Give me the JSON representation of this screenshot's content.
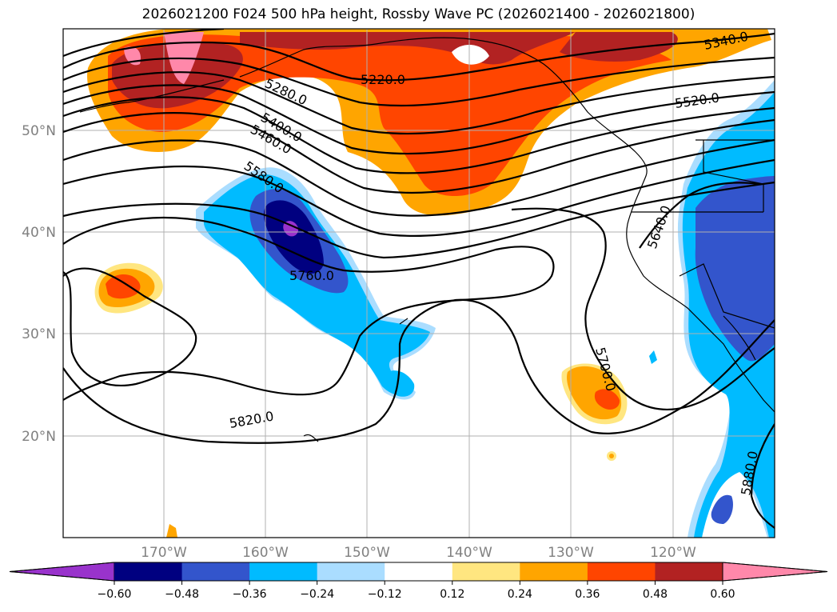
{
  "title": "2026021200 F024 500 hPa height, Rossby Wave PC (2026021400 - 2026021800)",
  "lat_labels": [
    "50°N",
    "40°N",
    "30°N",
    "20°N"
  ],
  "lon_labels": [
    "170°W",
    "160°W",
    "150°W",
    "140°W",
    "130°W",
    "120°W"
  ],
  "contour_labels": [
    "5340.0",
    "5220.0",
    "5280.0",
    "5400.0",
    "5460.0",
    "5520.0",
    "5580.0",
    "5640.0",
    "5760.0",
    "5700.0",
    "5820.0",
    "5880.0"
  ],
  "colorbar": {
    "ticks": [
      "−0.60",
      "−0.48",
      "−0.36",
      "−0.24",
      "−0.12",
      "0.12",
      "0.24",
      "0.36",
      "0.48",
      "0.60"
    ],
    "colors": [
      "#9933cc",
      "#000080",
      "#3355cc",
      "#00bbff",
      "#aaddff",
      "#ffffff",
      "#ffe680",
      "#ffa500",
      "#ff4500",
      "#b22222",
      "#ff88aa",
      "#ff88aa"
    ]
  },
  "colors": {
    "contour": "#000000",
    "grid": "#b0b0b0",
    "coast": "#000000"
  }
}
